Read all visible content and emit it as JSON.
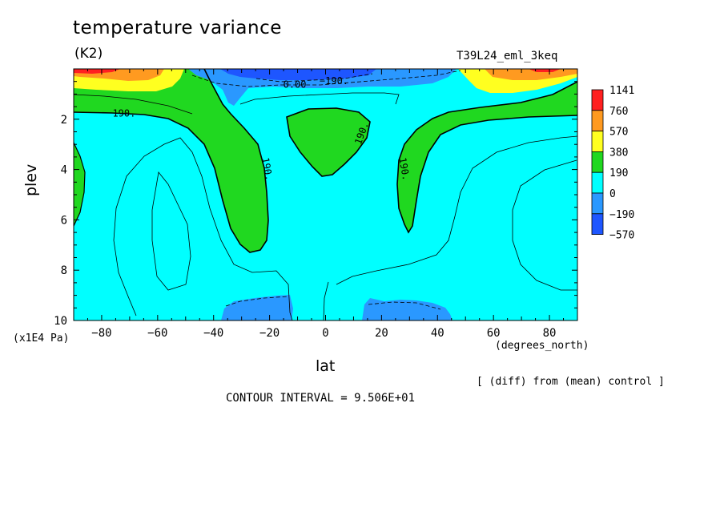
{
  "chart_data": {
    "type": "contour",
    "title": "temperature variance",
    "units": "(K2)",
    "run_id": "T39L24_eml_3keq",
    "xlabel": "lat",
    "xunits": "(degrees_north)",
    "ylabel": "plev",
    "yunits": "(x1E4 Pa)",
    "xlim": [
      -90,
      90
    ],
    "ylim": [
      10,
      0
    ],
    "x_ticks": [
      -80,
      -60,
      -40,
      -20,
      0,
      20,
      40,
      60,
      80
    ],
    "x_tick_labels": [
      "-80",
      "-60",
      "-40",
      "-20",
      "0",
      "20",
      "40",
      "60",
      "80"
    ],
    "y_ticks": [
      2,
      4,
      6,
      8,
      10
    ],
    "y_tick_labels": [
      "2",
      "4",
      "6",
      "8",
      "10"
    ],
    "legend": {
      "levels": [
        "1141",
        "760",
        "570",
        "380",
        "190",
        "0",
        "-190",
        "-570"
      ],
      "colors": [
        "#ff2020",
        "#ff9a20",
        "#ffff20",
        "#20d820",
        "#00ffff",
        "#2a98ff",
        "#1e56ff"
      ]
    },
    "contour_labels": [
      {
        "text": "190.",
        "lat": -72,
        "plev": 1.9
      },
      {
        "text": "190.",
        "lat": -22,
        "plev": 4.0
      },
      {
        "text": "190.",
        "lat": 14,
        "plev": 2.6
      },
      {
        "text": "190.",
        "lat": 27,
        "plev": 4.0
      },
      {
        "text": "0.00",
        "lat": -11,
        "plev": 0.75
      },
      {
        "text": "-190.",
        "lat": 3,
        "plev": 0.6
      }
    ],
    "note": "[ (diff) from (mean) control ]",
    "contour_interval_text": "CONTOUR INTERVAL = 9.506E+01"
  }
}
